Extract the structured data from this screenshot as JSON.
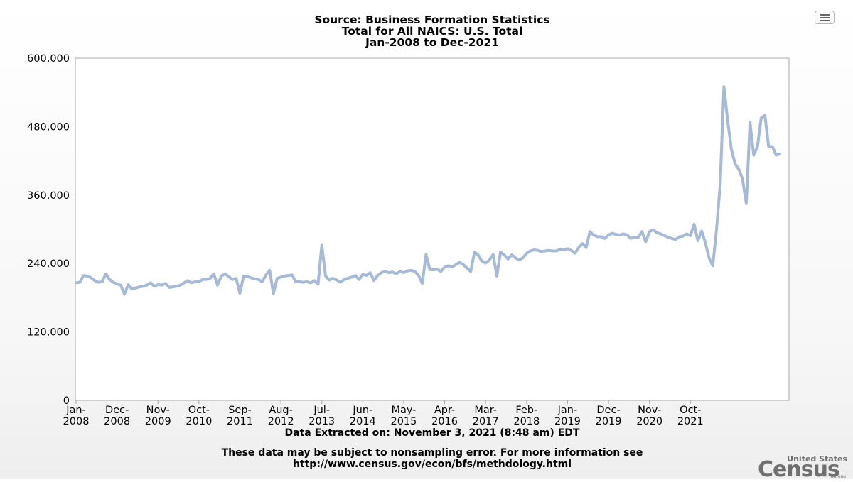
{
  "header": {
    "title_line1": "Source: Business Formation Statistics",
    "title_line2": "Total for All NAICS: U.S. Total",
    "title_line3": "Jan-2008 to Dec-2021"
  },
  "footer": {
    "extracted": "Data Extracted on: November 3, 2021 (8:48 am) EDT",
    "disclaimer_line1": "These data may be subject to nonsampling error. For more information see",
    "disclaimer_line2": "http://www.census.gov/econ/bfs/methdology.html"
  },
  "logo": {
    "top_text": "United States",
    "main_text": "Census",
    "bottom_text": "Bureau"
  },
  "menu_icon": "hamburger-menu-icon",
  "colors": {
    "line": "#a6bad7",
    "plot_border": "#a8a8a8"
  },
  "chart_data": {
    "type": "line",
    "title": "Source: Business Formation Statistics",
    "subtitle": "Total for All NAICS: U.S. Total — Jan-2008 to Dec-2021",
    "xlabel": "",
    "ylabel": "",
    "ylim": [
      0,
      600000
    ],
    "yticks": [
      "0",
      "120,000",
      "240,000",
      "360,000",
      "480,000",
      "600,000"
    ],
    "grid": false,
    "legend": "none",
    "x_tick_labels": [
      [
        "Jan-",
        "2008"
      ],
      [
        "Dec-",
        "2008"
      ],
      [
        "Nov-",
        "2009"
      ],
      [
        "Oct-",
        "2010"
      ],
      [
        "Sep-",
        "2011"
      ],
      [
        "Aug-",
        "2012"
      ],
      [
        "Jul-",
        "2013"
      ],
      [
        "Jun-",
        "2014"
      ],
      [
        "May-",
        "2015"
      ],
      [
        "Apr-",
        "2016"
      ],
      [
        "Mar-",
        "2017"
      ],
      [
        "Feb-",
        "2018"
      ],
      [
        "Jan-",
        "2019"
      ],
      [
        "Dec-",
        "2019"
      ],
      [
        "Nov-",
        "2020"
      ],
      [
        "Oct-",
        "2021"
      ]
    ],
    "x_start": "Jan-2008",
    "series": [
      {
        "values": [
          206000,
          207000,
          219000,
          218000,
          215000,
          210000,
          207000,
          208000,
          222000,
          212000,
          207000,
          204000,
          202000,
          186000,
          203000,
          195000,
          197000,
          199000,
          200000,
          202000,
          206000,
          200000,
          203000,
          202000,
          205000,
          198000,
          199000,
          200000,
          202000,
          206000,
          210000,
          206000,
          208000,
          208000,
          212000,
          212000,
          214000,
          222000,
          202000,
          218000,
          222000,
          217000,
          212000,
          214000,
          188000,
          218000,
          217000,
          215000,
          213000,
          212000,
          208000,
          220000,
          228000,
          187000,
          214000,
          216000,
          218000,
          219000,
          220000,
          208000,
          208000,
          207000,
          208000,
          206000,
          210000,
          204000,
          272000,
          218000,
          211000,
          214000,
          211000,
          207000,
          212000,
          214000,
          216000,
          219000,
          212000,
          221000,
          219000,
          224000,
          210000,
          219000,
          224000,
          226000,
          224000,
          225000,
          222000,
          226000,
          224000,
          227000,
          228000,
          226000,
          219000,
          205000,
          256000,
          229000,
          229000,
          230000,
          226000,
          234000,
          236000,
          234000,
          238000,
          242000,
          238000,
          232000,
          226000,
          260000,
          255000,
          244000,
          241000,
          246000,
          256000,
          218000,
          260000,
          255000,
          248000,
          255000,
          250000,
          246000,
          250000,
          258000,
          262000,
          264000,
          263000,
          261000,
          262000,
          263000,
          262000,
          262000,
          265000,
          264000,
          266000,
          263000,
          258000,
          268000,
          275000,
          268000,
          296000,
          290000,
          287000,
          287000,
          284000,
          290000,
          293000,
          291000,
          290000,
          292000,
          290000,
          284000,
          286000,
          286000,
          296000,
          278000,
          296000,
          299000,
          294000,
          292000,
          289000,
          286000,
          284000,
          282000,
          287000,
          288000,
          292000,
          289000,
          309000,
          280000,
          297000,
          277000,
          250000,
          236000,
          300000,
          380000,
          550000,
          490000,
          440000,
          415000,
          405000,
          388000,
          345000,
          488000,
          430000,
          445000,
          495000,
          500000,
          445000,
          445000,
          430000,
          432000
        ]
      }
    ]
  }
}
